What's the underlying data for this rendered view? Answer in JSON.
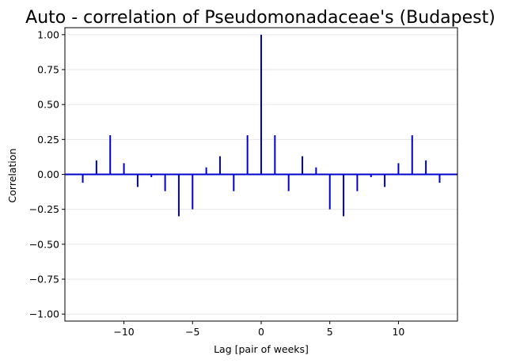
{
  "chart_data": {
    "type": "bar",
    "title": "Auto - correlation of Pseudomonadaceae's (Budapest)",
    "xlabel": "Lag [pair of weeks]",
    "ylabel": "Correlation",
    "xlim": [
      -14.3,
      14.3
    ],
    "ylim": [
      -1.05,
      1.05
    ],
    "grid": "horizontal",
    "x_ticks": [
      -10,
      -5,
      0,
      5,
      10
    ],
    "x_tick_labels": [
      "−10",
      "−5",
      "0",
      "5",
      "10"
    ],
    "y_ticks": [
      -1.0,
      -0.75,
      -0.5,
      -0.25,
      0.0,
      0.25,
      0.5,
      0.75,
      1.0
    ],
    "y_tick_labels": [
      "−1.00",
      "−0.75",
      "−0.50",
      "−0.25",
      "0.00",
      "0.25",
      "0.50",
      "0.75",
      "1.00"
    ],
    "series": [
      {
        "color": "#0000cc",
        "x": [
          -13,
          -12,
          -11,
          -10,
          -9,
          -8,
          -7,
          -6,
          -5,
          -4,
          -3,
          -2,
          -1,
          0,
          1,
          2,
          3,
          4,
          5,
          6,
          7,
          8,
          9,
          10,
          11,
          12,
          13
        ],
        "values": [
          -0.06,
          0.1,
          0.28,
          0.08,
          -0.09,
          -0.02,
          -0.12,
          -0.3,
          -0.25,
          0.05,
          0.13,
          -0.12,
          0.28,
          1.0,
          0.28,
          -0.12,
          0.13,
          0.05,
          -0.25,
          -0.3,
          -0.12,
          -0.02,
          -0.09,
          0.08,
          0.28,
          0.1,
          -0.06
        ]
      }
    ]
  }
}
